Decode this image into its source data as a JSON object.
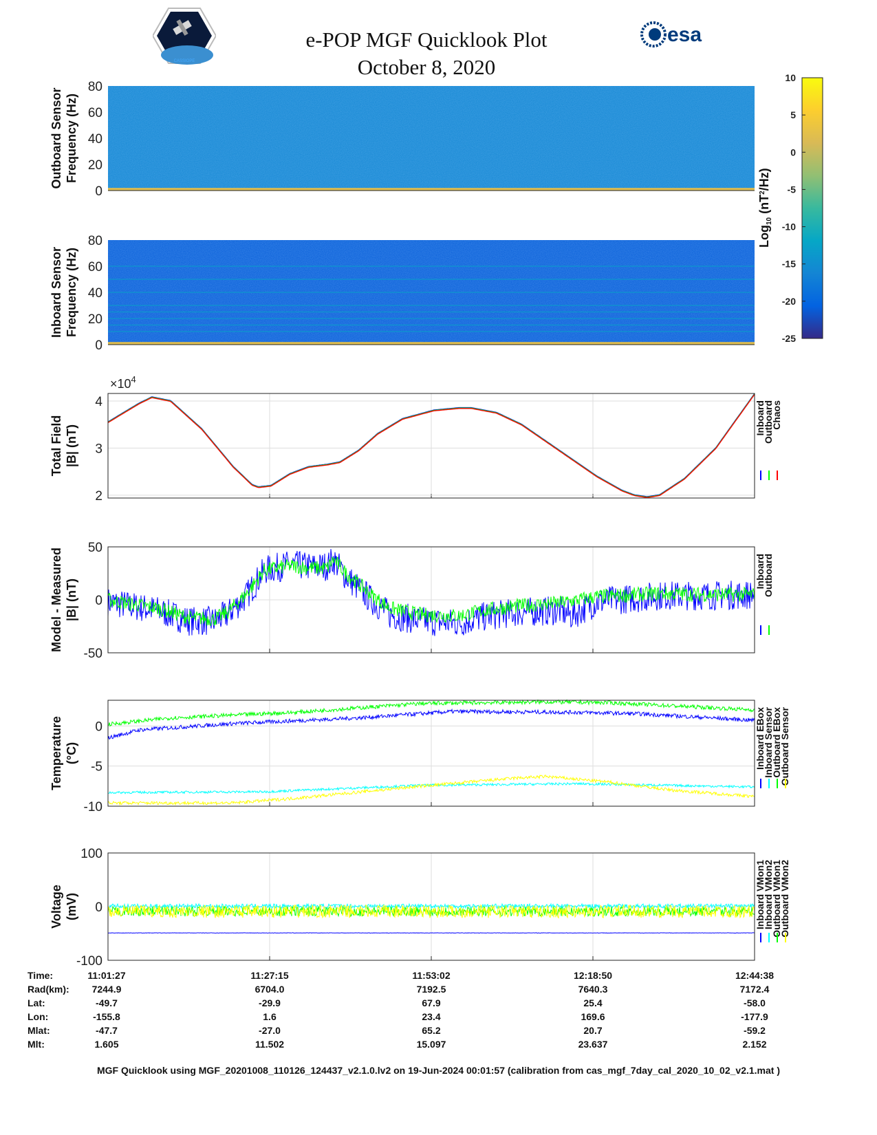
{
  "header": {
    "title": "e-POP MGF Quicklook Plot",
    "date": "October 8, 2020",
    "logo_left_text": "CASSIOPE",
    "logo_right_text": "esa"
  },
  "colorbar": {
    "label_parts": [
      "Log",
      "10",
      " (nT",
      "2",
      "/Hz)"
    ],
    "range": [
      -25,
      10
    ],
    "ticks": [
      10,
      5,
      0,
      -5,
      -10,
      -15,
      -20,
      -25
    ],
    "colors": [
      "#352a87",
      "#0363e1",
      "#1485d4",
      "#06a7c6",
      "#38b99e",
      "#92bf73",
      "#d9ba56",
      "#fcce2e",
      "#f9fb0e"
    ]
  },
  "chart_data": [
    {
      "type": "heatmap",
      "id": "outboard-spectrogram",
      "ylabel": [
        "Outboard Sensor",
        "Frequency (Hz)"
      ],
      "xlim": [
        0,
        103.18
      ],
      "ylim": [
        0,
        80
      ],
      "yticks": [
        0,
        20,
        40,
        60,
        80
      ],
      "background_level": -16,
      "low_freq_level": 2,
      "lines_hz": []
    },
    {
      "type": "heatmap",
      "id": "inboard-spectrogram",
      "ylabel": [
        "Inboard Sensor",
        "Frequency (Hz)"
      ],
      "xlim": [
        0,
        103.18
      ],
      "ylim": [
        0,
        80
      ],
      "yticks": [
        0,
        20,
        40,
        60,
        80
      ],
      "background_level": -21,
      "low_freq_level": 2,
      "lines_hz": [
        10,
        15,
        20,
        25,
        30,
        40,
        50,
        60
      ]
    },
    {
      "type": "line",
      "id": "total-field",
      "ylabel": [
        "Total Field",
        "|B| (nT)"
      ],
      "multiplier": "×10",
      "multiplier_exp": "4",
      "xlim": [
        0,
        103.18
      ],
      "ylim": [
        1.94,
        4.16
      ],
      "yticks": [
        2,
        3,
        4
      ],
      "series": [
        {
          "name": "Inboard",
          "color": "#0000ff"
        },
        {
          "name": "Outboard",
          "color": "#00ff00"
        },
        {
          "name": "Chaos",
          "color": "#ff0000"
        }
      ],
      "x": [
        0,
        5,
        7,
        10,
        15,
        20,
        23,
        24,
        26,
        29,
        32,
        35,
        37,
        40,
        43,
        47,
        52,
        56,
        58,
        62,
        66,
        72,
        78,
        82,
        84,
        86,
        88,
        92,
        97,
        103.18
      ],
      "y": [
        3.55,
        3.95,
        4.08,
        4.0,
        3.4,
        2.6,
        2.22,
        2.17,
        2.2,
        2.45,
        2.6,
        2.65,
        2.7,
        2.95,
        3.3,
        3.62,
        3.8,
        3.85,
        3.85,
        3.75,
        3.5,
        2.95,
        2.4,
        2.1,
        2.0,
        1.96,
        2.0,
        2.35,
        3.0,
        4.15
      ]
    },
    {
      "type": "band",
      "id": "model-minus-measured",
      "ylabel": [
        "Model - Measured",
        "|B| (nT)"
      ],
      "xlim": [
        0,
        103.18
      ],
      "ylim": [
        -50,
        50
      ],
      "yticks": [
        -50,
        0,
        50
      ],
      "series": [
        {
          "name": "Inboard",
          "color": "#0000ff",
          "spread": 14,
          "x": [
            0,
            8,
            13,
            17,
            19,
            22,
            25,
            29,
            33,
            35,
            36,
            38,
            42,
            45,
            50,
            56,
            60,
            65,
            72,
            74,
            78,
            88,
            95,
            103.18
          ],
          "y": [
            -2,
            -10,
            -20,
            -20,
            -14,
            3,
            28,
            33,
            31,
            32,
            38,
            22,
            0,
            -14,
            -20,
            -22,
            -16,
            -12,
            -10,
            -15,
            -2,
            4,
            4,
            5
          ]
        },
        {
          "name": "Outboard",
          "color": "#00ff00",
          "spread": 7,
          "x": [
            0,
            8,
            13,
            17,
            19,
            22,
            25,
            29,
            33,
            35,
            36,
            38,
            42,
            45,
            50,
            56,
            60,
            65,
            72,
            78,
            88,
            95,
            103.18
          ],
          "y": [
            0,
            -8,
            -17,
            -18,
            -12,
            5,
            28,
            32,
            30,
            30,
            38,
            25,
            5,
            -8,
            -14,
            -15,
            -10,
            -6,
            -3,
            3,
            6,
            5,
            5
          ]
        }
      ]
    },
    {
      "type": "band",
      "id": "temperature",
      "ylabel": [
        "Temperature",
        "(°C)"
      ],
      "xlim": [
        0,
        103.18
      ],
      "ylim": [
        -10,
        3.2
      ],
      "yticks": [
        -10,
        -5,
        0
      ],
      "series": [
        {
          "name": "Inboard EBox",
          "color": "#0000ff",
          "spread": 0.25,
          "x": [
            0,
            5,
            20,
            40,
            55,
            75,
            85,
            103.18
          ],
          "y": [
            -1.5,
            -0.5,
            0.3,
            1.0,
            1.8,
            1.7,
            1.5,
            0.7
          ]
        },
        {
          "name": "Inboard Sensor",
          "color": "#00ffff",
          "spread": 0.15,
          "x": [
            0,
            25,
            50,
            75,
            103.18
          ],
          "y": [
            -8.3,
            -8.2,
            -7.4,
            -7.2,
            -7.6
          ]
        },
        {
          "name": "Outboard EBox",
          "color": "#00ff00",
          "spread": 0.25,
          "x": [
            0,
            10,
            30,
            50,
            70,
            80,
            103.18
          ],
          "y": [
            0.2,
            1.0,
            1.7,
            2.8,
            3.0,
            2.9,
            2.0
          ]
        },
        {
          "name": "Outboard Sensor",
          "color": "#ffff00",
          "spread": 0.2,
          "x": [
            0,
            20,
            30,
            50,
            65,
            70,
            80,
            90,
            103.18
          ],
          "y": [
            -9.6,
            -9.6,
            -9.0,
            -7.5,
            -6.5,
            -6.3,
            -7.0,
            -8.0,
            -8.8
          ]
        }
      ]
    },
    {
      "type": "band",
      "id": "voltage",
      "ylabel": [
        "Voltage",
        "(mV)"
      ],
      "xlim": [
        0,
        103.18
      ],
      "ylim": [
        -100,
        100
      ],
      "yticks": [
        -100,
        0,
        100
      ],
      "series": [
        {
          "name": "Inboard VMon1",
          "color": "#0000ff",
          "spread": 0.4,
          "x": [
            0,
            103.18
          ],
          "y": [
            -49,
            -49
          ]
        },
        {
          "name": "Inboard VMon2",
          "color": "#00ffff",
          "spread": 4,
          "x": [
            0,
            103.18
          ],
          "y": [
            1,
            1
          ]
        },
        {
          "name": "Outboard VMon1",
          "color": "#00ff00",
          "spread": 9,
          "x": [
            0,
            103.18
          ],
          "y": [
            -9,
            -9
          ]
        },
        {
          "name": "Outboard VMon2",
          "color": "#ffff00",
          "spread": 12,
          "x": [
            0,
            103.18
          ],
          "y": [
            -9,
            -9
          ]
        }
      ]
    }
  ],
  "orbit_table": {
    "labels": [
      "Time:",
      "Rad(km):",
      "Lat:",
      "Lon:",
      "Mlat:",
      "Mlt:"
    ],
    "columns": [
      [
        "11:01:27",
        "7244.9",
        "-49.7",
        "-155.8",
        "-47.7",
        "1.605"
      ],
      [
        "11:27:15",
        "6704.0",
        "-29.9",
        "1.6",
        "-27.0",
        "11.502"
      ],
      [
        "11:53:02",
        "7192.5",
        "67.9",
        "23.4",
        "65.2",
        "15.097"
      ],
      [
        "12:18:50",
        "7640.3",
        "25.4",
        "169.6",
        "20.7",
        "23.637"
      ],
      [
        "12:44:38",
        "7172.4",
        "-58.0",
        "-177.9",
        "-59.2",
        "2.152"
      ]
    ]
  },
  "footer": "MGF Quicklook using MGF_20201008_110126_124437_v2.1.0.lv2 on 19-Jun-2024 00:01:57 (calibration from cas_mgf_7day_cal_2020_10_02_v2.1.mat )"
}
